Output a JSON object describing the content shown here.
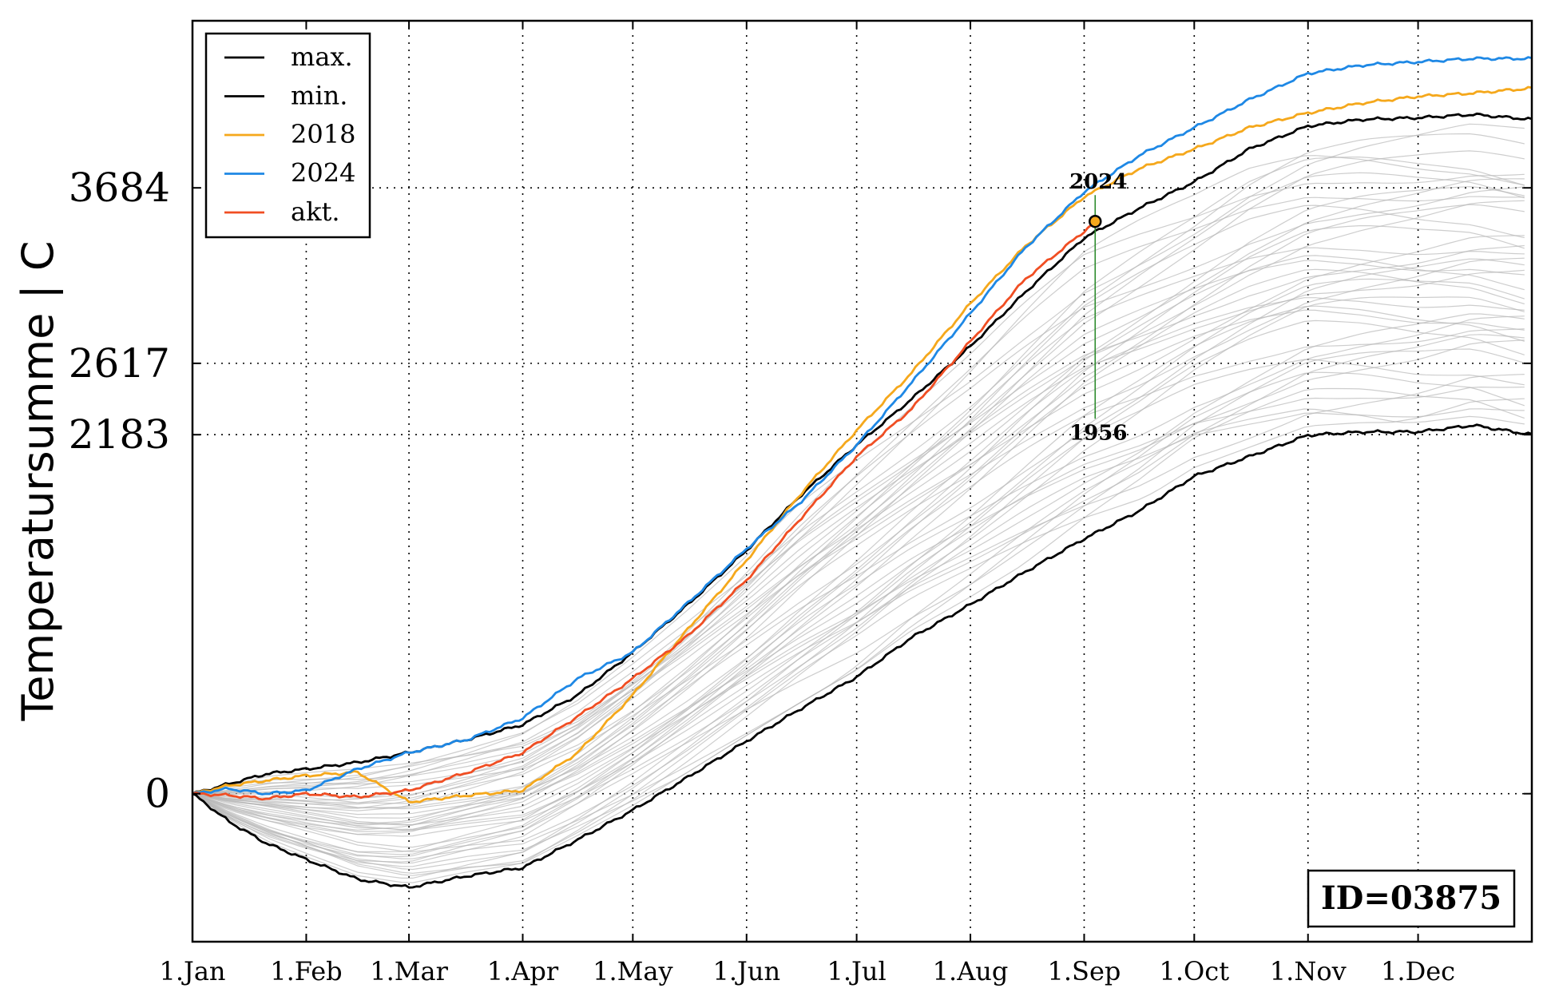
{
  "chart_data": {
    "type": "line",
    "ylabel": "Temperatursumme | C",
    "x_tick_labels": [
      "1.Jan",
      "1.Feb",
      "1.Mar",
      "1.Apr",
      "1.May",
      "1.Jun",
      "1.Jul",
      "1.Aug",
      "1.Sep",
      "1.Oct",
      "1.Nov",
      "1.Dec"
    ],
    "x_tick_days": [
      0,
      31,
      59,
      90,
      120,
      151,
      181,
      212,
      243,
      273,
      304,
      334
    ],
    "xlim": [
      0,
      365
    ],
    "ylim": [
      -900,
      4700
    ],
    "y_ticks": [
      0,
      2183,
      2617,
      3684
    ],
    "y_tick_labels": [
      "0",
      "2183",
      "2617",
      "3684"
    ],
    "grid": "dotted at ticks",
    "legend_position": "top-left",
    "series": [
      {
        "name": "max.",
        "color": "#000000",
        "x": [
          0,
          10,
          20,
          31,
          45,
          59,
          75,
          90,
          105,
          120,
          135,
          151,
          166,
          181,
          196,
          212,
          227,
          243,
          258,
          273,
          288,
          304,
          319,
          334,
          349,
          365
        ],
        "y": [
          0,
          60,
          120,
          150,
          190,
          250,
          330,
          420,
          600,
          860,
          1150,
          1480,
          1820,
          2120,
          2400,
          2720,
          3050,
          3380,
          3560,
          3720,
          3920,
          4060,
          4100,
          4110,
          4130,
          4100
        ]
      },
      {
        "name": "min.",
        "color": "#000000",
        "x": [
          0,
          10,
          20,
          31,
          45,
          59,
          75,
          90,
          105,
          120,
          135,
          151,
          166,
          181,
          196,
          212,
          227,
          243,
          258,
          273,
          288,
          304,
          319,
          334,
          349,
          365
        ],
        "y": [
          0,
          -170,
          -300,
          -400,
          -520,
          -570,
          -500,
          -450,
          -280,
          -100,
          100,
          320,
          520,
          710,
          950,
          1150,
          1350,
          1550,
          1720,
          1930,
          2050,
          2180,
          2200,
          2200,
          2240,
          2183
        ]
      },
      {
        "name": "2018",
        "color": "#f5a81c",
        "x": [
          0,
          10,
          20,
          31,
          45,
          59,
          75,
          90,
          105,
          120,
          135,
          151,
          166,
          181,
          196,
          212,
          227,
          243,
          258,
          273,
          288,
          304,
          319,
          334,
          349,
          365
        ],
        "y": [
          0,
          50,
          80,
          110,
          130,
          -50,
          -10,
          20,
          250,
          600,
          1000,
          1420,
          1830,
          2210,
          2560,
          2980,
          3330,
          3630,
          3800,
          3920,
          4050,
          4140,
          4200,
          4240,
          4260,
          4290
        ]
      },
      {
        "name": "2024",
        "color": "#1e88e5",
        "x": [
          0,
          10,
          20,
          31,
          45,
          59,
          75,
          90,
          105,
          120,
          135,
          151,
          166,
          181,
          196,
          212,
          227,
          243,
          258,
          273,
          288,
          304,
          319,
          334,
          349,
          365
        ],
        "y": [
          0,
          30,
          0,
          20,
          150,
          250,
          330,
          460,
          700,
          860,
          1160,
          1490,
          1780,
          2120,
          2500,
          2920,
          3320,
          3660,
          3880,
          4050,
          4220,
          4380,
          4430,
          4450,
          4470,
          4470
        ]
      },
      {
        "name": "akt.",
        "color": "#f04e23",
        "x": [
          0,
          10,
          20,
          31,
          45,
          59,
          75,
          90,
          105,
          120,
          135,
          151,
          166,
          181,
          196,
          212,
          227,
          243,
          246
        ],
        "y": [
          0,
          -10,
          -30,
          0,
          -20,
          20,
          130,
          250,
          470,
          700,
          960,
          1300,
          1680,
          2050,
          2340,
          2750,
          3130,
          3420,
          3480
        ]
      }
    ],
    "current_marker": {
      "day": 246,
      "value": 3480
    },
    "annotations": {
      "top_label": "2024",
      "bottom_label": "1956",
      "top_value": 3640,
      "bottom_value": 2280
    },
    "id_box_text": "ID=03875",
    "colors": {
      "grid": "#000000",
      "background_lines": "#b8b8b8",
      "marker_fill": "#f5a81c",
      "range_line": "#2e8b2e"
    }
  }
}
